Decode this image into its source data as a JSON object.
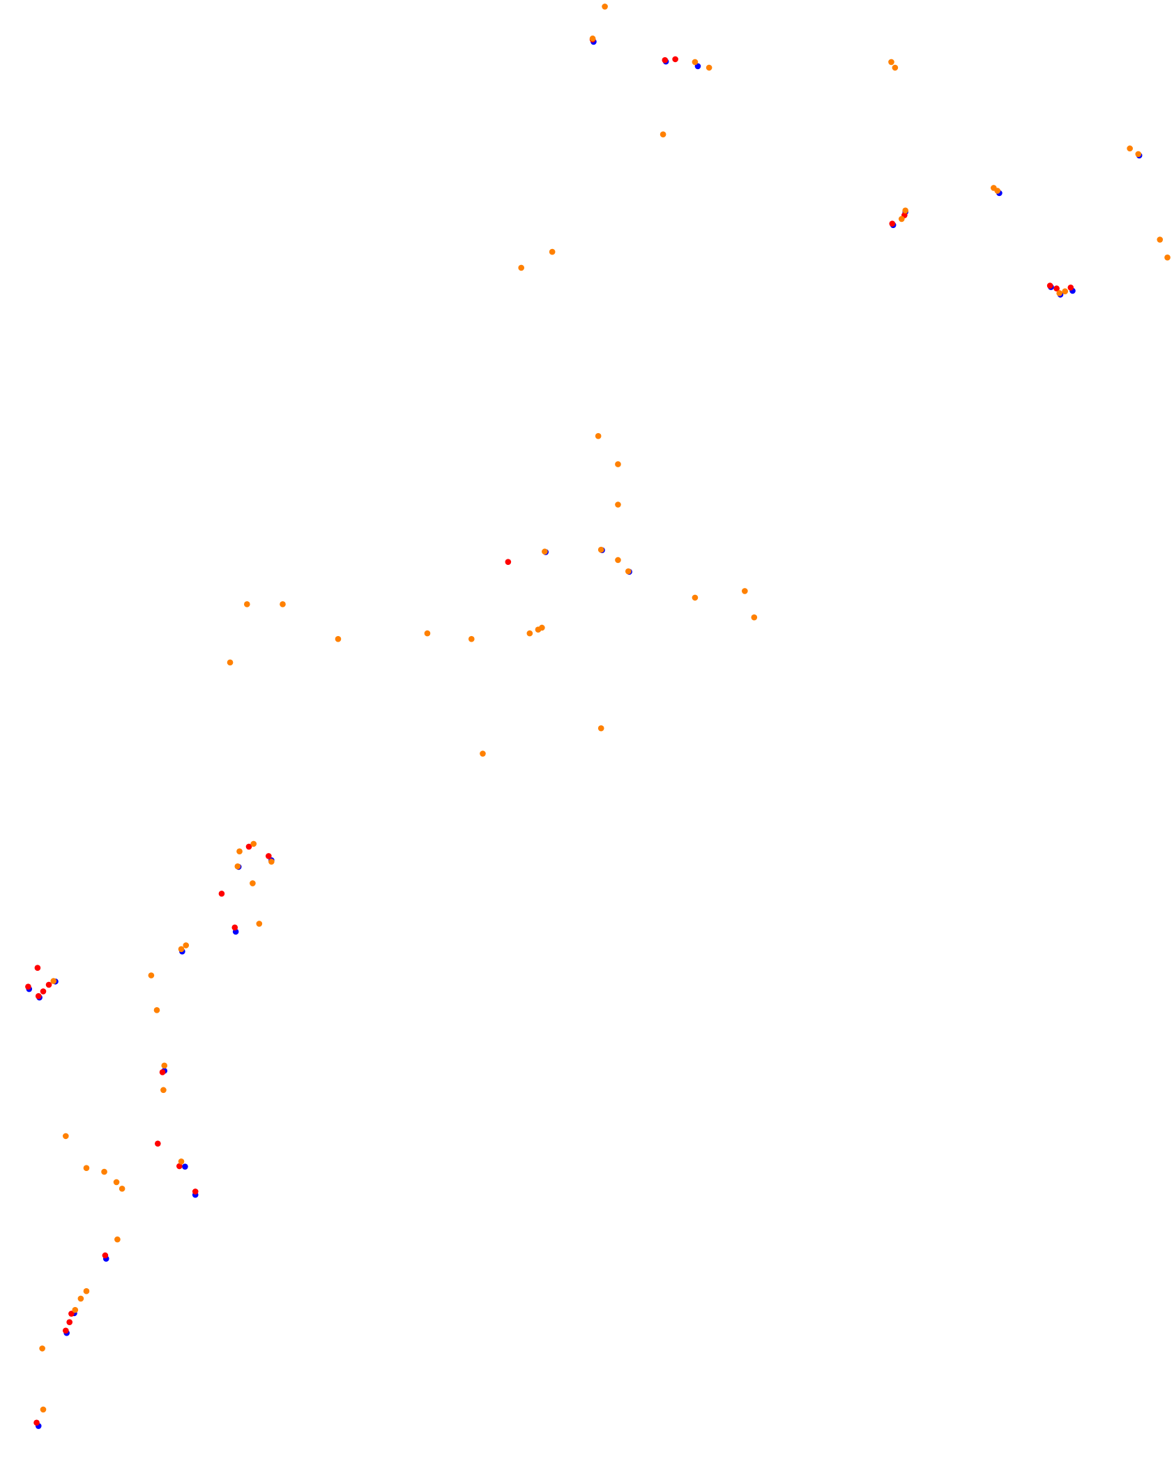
{
  "chart_data": {
    "type": "scatter",
    "title": "",
    "xlabel": "",
    "ylabel": "",
    "grid": false,
    "legend": "none",
    "axes_visible": false,
    "xlim": [
      0,
      1250
    ],
    "ylim": [
      1575,
      0
    ],
    "series": [
      {
        "color": "#0000ff",
        "points": [
          [
            631,
            43
          ],
          [
            708,
            64
          ],
          [
            742,
            69
          ],
          [
            950,
            238
          ],
          [
            963,
            224
          ],
          [
            1063,
            204
          ],
          [
            1118,
            304
          ],
          [
            1128,
            312
          ],
          [
            1141,
            308
          ],
          [
            580,
            586
          ],
          [
            640,
            584
          ],
          [
            669,
            607
          ],
          [
            253,
            921
          ],
          [
            288,
            914
          ],
          [
            250,
            990
          ],
          [
            193,
            1011
          ],
          [
            30,
            1051
          ],
          [
            41,
            1060
          ],
          [
            58,
            1043
          ],
          [
            174,
            1138
          ],
          [
            196,
            1240
          ],
          [
            207,
            1270
          ],
          [
            112,
            1338
          ],
          [
            78,
            1396
          ],
          [
            70,
            1417
          ],
          [
            40,
            1516
          ],
          [
            1212,
            164
          ]
        ]
      },
      {
        "color": "#ff0000",
        "points": [
          [
            631,
            42
          ],
          [
            708,
            64
          ],
          [
            719,
            63
          ],
          [
            541,
            598
          ],
          [
            950,
            238
          ],
          [
            963,
            229
          ],
          [
            1118,
            304
          ],
          [
            1125,
            307
          ],
          [
            1140,
            306
          ],
          [
            265,
            901
          ],
          [
            286,
            911
          ],
          [
            236,
            951
          ],
          [
            250,
            987
          ],
          [
            40,
            1030
          ],
          [
            30,
            1050
          ],
          [
            52,
            1048
          ],
          [
            46,
            1055
          ],
          [
            41,
            1060
          ],
          [
            173,
            1141
          ],
          [
            168,
            1217
          ],
          [
            191,
            1241
          ],
          [
            208,
            1268
          ],
          [
            112,
            1336
          ],
          [
            76,
            1398
          ],
          [
            74,
            1407
          ],
          [
            70,
            1416
          ],
          [
            39,
            1514
          ]
        ]
      },
      {
        "color": "#ff8000",
        "points": [
          [
            644,
            7
          ],
          [
            631,
            41
          ],
          [
            740,
            66
          ],
          [
            755,
            72
          ],
          [
            949,
            66
          ],
          [
            953,
            72
          ],
          [
            706,
            143
          ],
          [
            1058,
            200
          ],
          [
            1062,
            203
          ],
          [
            1203,
            158
          ],
          [
            1212,
            164
          ],
          [
            964,
            224
          ],
          [
            960,
            233
          ],
          [
            1235,
            255
          ],
          [
            1243,
            274
          ],
          [
            555,
            285
          ],
          [
            588,
            268
          ],
          [
            1128,
            312
          ],
          [
            1134,
            310
          ],
          [
            637,
            464
          ],
          [
            658,
            494
          ],
          [
            658,
            537
          ],
          [
            580,
            587
          ],
          [
            640,
            585
          ],
          [
            658,
            596
          ],
          [
            669,
            608
          ],
          [
            740,
            636
          ],
          [
            793,
            629
          ],
          [
            803,
            657
          ],
          [
            263,
            643
          ],
          [
            301,
            643
          ],
          [
            360,
            680
          ],
          [
            455,
            674
          ],
          [
            502,
            680
          ],
          [
            564,
            674
          ],
          [
            573,
            670
          ],
          [
            577,
            668
          ],
          [
            245,
            705
          ],
          [
            640,
            775
          ],
          [
            514,
            802
          ],
          [
            255,
            906
          ],
          [
            270,
            898
          ],
          [
            253,
            922
          ],
          [
            289,
            917
          ],
          [
            269,
            940
          ],
          [
            276,
            983
          ],
          [
            193,
            1010
          ],
          [
            198,
            1006
          ],
          [
            161,
            1038
          ],
          [
            57,
            1044
          ],
          [
            167,
            1075
          ],
          [
            175,
            1134
          ],
          [
            174,
            1160
          ],
          [
            70,
            1209
          ],
          [
            193,
            1236
          ],
          [
            92,
            1243
          ],
          [
            111,
            1247
          ],
          [
            124,
            1258
          ],
          [
            130,
            1265
          ],
          [
            125,
            1319
          ],
          [
            92,
            1374
          ],
          [
            86,
            1382
          ],
          [
            80,
            1394
          ],
          [
            45,
            1435
          ],
          [
            46,
            1500
          ]
        ]
      }
    ]
  }
}
